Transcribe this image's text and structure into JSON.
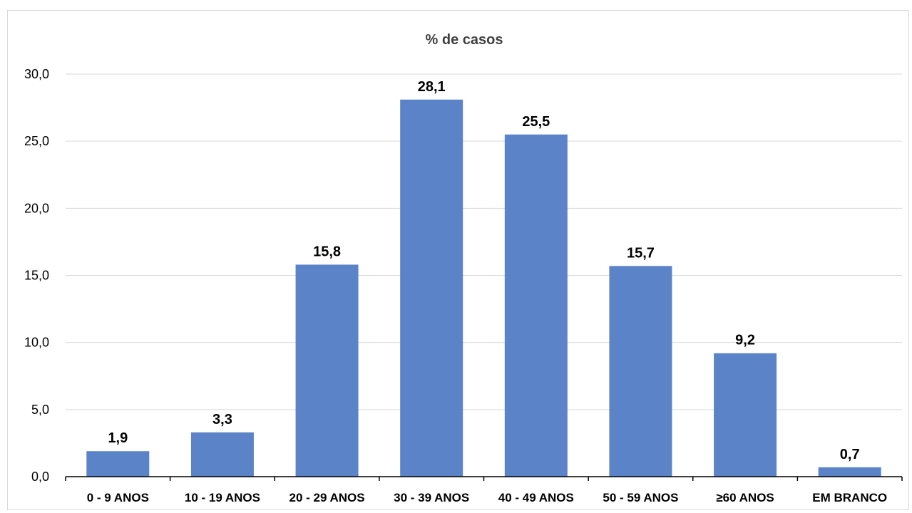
{
  "chart_data": {
    "type": "bar",
    "title": "% de casos",
    "categories": [
      "0 - 9 ANOS",
      "10 - 19 ANOS",
      "20 - 29 ANOS",
      "30 - 39 ANOS",
      "40 - 49 ANOS",
      "50 - 59 ANOS",
      "≥60 ANOS",
      "EM BRANCO"
    ],
    "values": [
      1.9,
      3.3,
      15.8,
      28.1,
      25.5,
      15.7,
      9.2,
      0.7
    ],
    "value_labels": [
      "1,9",
      "3,3",
      "15,8",
      "28,1",
      "25,5",
      "15,7",
      "9,2",
      "0,7"
    ],
    "ylim": [
      0,
      30
    ],
    "yticks": [
      0,
      5,
      10,
      15,
      20,
      25,
      30
    ],
    "ytick_labels": [
      "0,0",
      "5,0",
      "10,0",
      "15,0",
      "20,0",
      "25,0",
      "30,0"
    ],
    "grid": true,
    "bar_color": "#5b84c8"
  }
}
